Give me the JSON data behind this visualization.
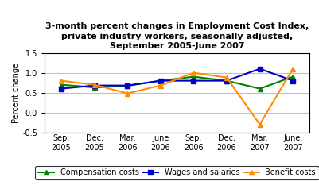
{
  "title": "3-month percent changes in Employment Cost Index,\nprivate industry workers, seasonally adjusted,\nSeptember 2005-June 2007",
  "ylabel": "Percent change",
  "x_labels": [
    "Sep.\n2005",
    "Dec.\n2005",
    "Mar.\n2006",
    "June\n2006",
    "Sep.\n2006",
    "Dec.\n2006",
    "Mar.\n2007",
    "June.\n2007"
  ],
  "compensation_costs": [
    0.7,
    0.63,
    0.67,
    0.8,
    0.9,
    0.8,
    0.6,
    0.9
  ],
  "wages_salaries": [
    0.6,
    0.68,
    0.68,
    0.8,
    0.8,
    0.8,
    1.1,
    0.8
  ],
  "benefit_costs": [
    0.8,
    0.7,
    0.48,
    0.68,
    1.0,
    0.88,
    -0.3,
    1.1
  ],
  "comp_color": "#008000",
  "wages_color": "#0000CC",
  "benefit_color": "#FF8C00",
  "ylim": [
    -0.5,
    1.5
  ],
  "yticks": [
    -0.5,
    0.0,
    0.5,
    1.0,
    1.5
  ],
  "grid_color": "#c0c0c0",
  "background_color": "#ffffff",
  "legend_labels": [
    "Compensation costs",
    "Wages and salaries",
    "Benefit costs"
  ],
  "title_fontsize": 8,
  "axis_fontsize": 7,
  "legend_fontsize": 7
}
